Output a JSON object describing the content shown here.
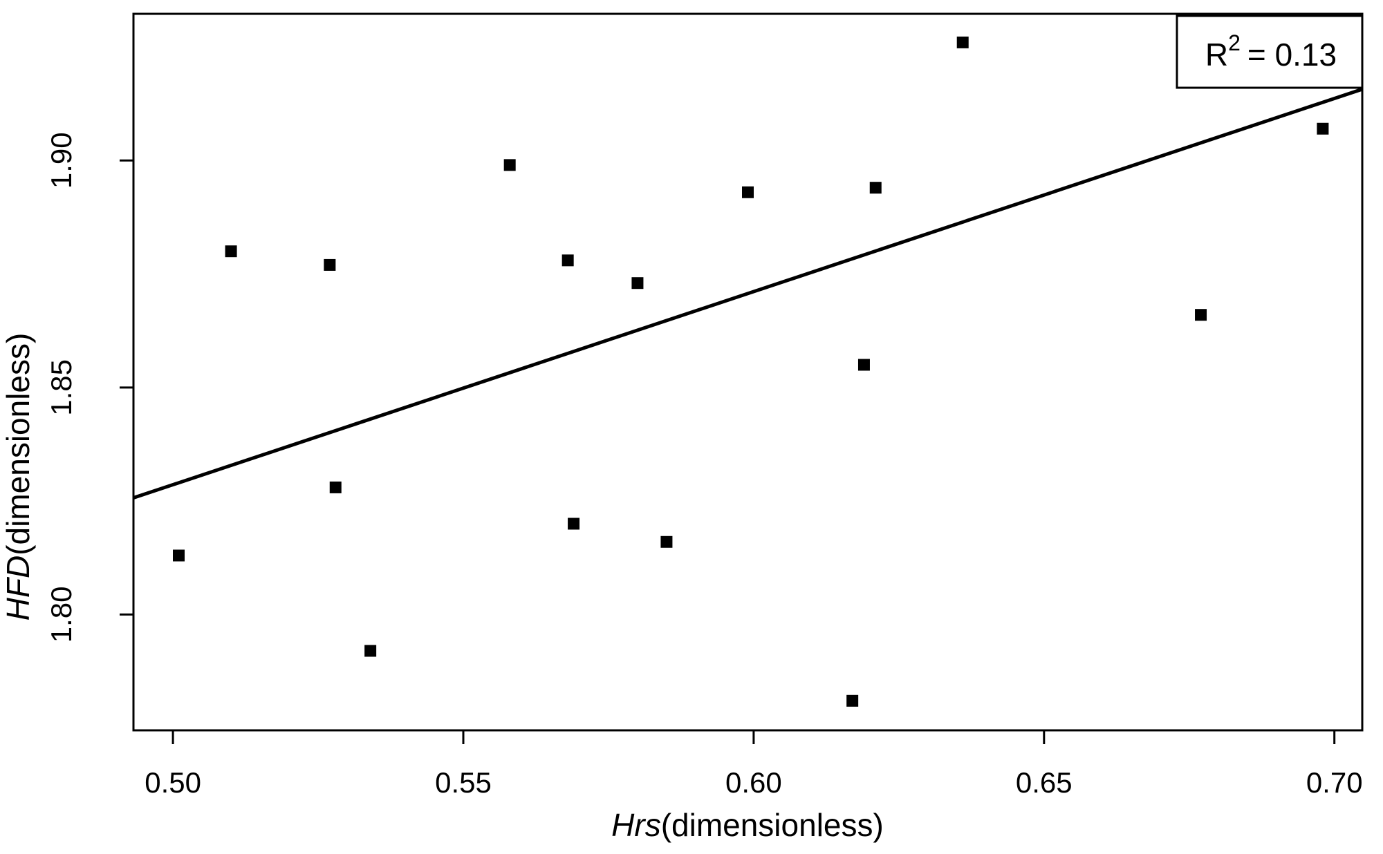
{
  "figure": {
    "r2": {
      "prefix": "R",
      "sup": "2",
      "value": "= 0.13"
    },
    "xlabel": {
      "italic": "Hrs",
      "rest": "(dimensionless)"
    },
    "ylabel": {
      "italic": "HFD",
      "rest": "(dimensionless)"
    }
  },
  "chart_data": {
    "type": "scatter",
    "title": "",
    "xlabel": "Hrs (dimensionless)",
    "ylabel": "HFD (dimensionless)",
    "r_squared": 0.13,
    "xlim": [
      0.4932,
      0.7048
    ],
    "ylim": [
      1.7745,
      1.9323
    ],
    "grid": false,
    "marker": "filled-square",
    "marker_size_px": 17,
    "colors": {
      "points": "#000000",
      "line": "#000000",
      "text": "#000000",
      "background": "#ffffff",
      "border": "#000000"
    },
    "x_ticks": [
      {
        "value": 0.5,
        "label": "0.50"
      },
      {
        "value": 0.55,
        "label": "0.55"
      },
      {
        "value": 0.6,
        "label": "0.60"
      },
      {
        "value": 0.65,
        "label": "0.65"
      },
      {
        "value": 0.7,
        "label": "0.70"
      }
    ],
    "y_ticks": [
      {
        "value": 1.8,
        "label": "1.80"
      },
      {
        "value": 1.85,
        "label": "1.85"
      },
      {
        "value": 1.9,
        "label": "1.90"
      }
    ],
    "points": [
      {
        "x": 0.501,
        "y": 1.813
      },
      {
        "x": 0.51,
        "y": 1.88
      },
      {
        "x": 0.527,
        "y": 1.877
      },
      {
        "x": 0.528,
        "y": 1.828
      },
      {
        "x": 0.534,
        "y": 1.792
      },
      {
        "x": 0.558,
        "y": 1.899
      },
      {
        "x": 0.568,
        "y": 1.878
      },
      {
        "x": 0.569,
        "y": 1.82
      },
      {
        "x": 0.58,
        "y": 1.873
      },
      {
        "x": 0.585,
        "y": 1.816
      },
      {
        "x": 0.599,
        "y": 1.893
      },
      {
        "x": 0.617,
        "y": 1.781
      },
      {
        "x": 0.619,
        "y": 1.855
      },
      {
        "x": 0.621,
        "y": 1.894
      },
      {
        "x": 0.636,
        "y": 1.926
      },
      {
        "x": 0.677,
        "y": 1.866
      },
      {
        "x": 0.698,
        "y": 1.907
      }
    ],
    "regression_line": {
      "x1": 0.4932,
      "y1": 1.8257,
      "x2": 0.7048,
      "y2": 1.9157
    },
    "legend_position": "top-right"
  }
}
